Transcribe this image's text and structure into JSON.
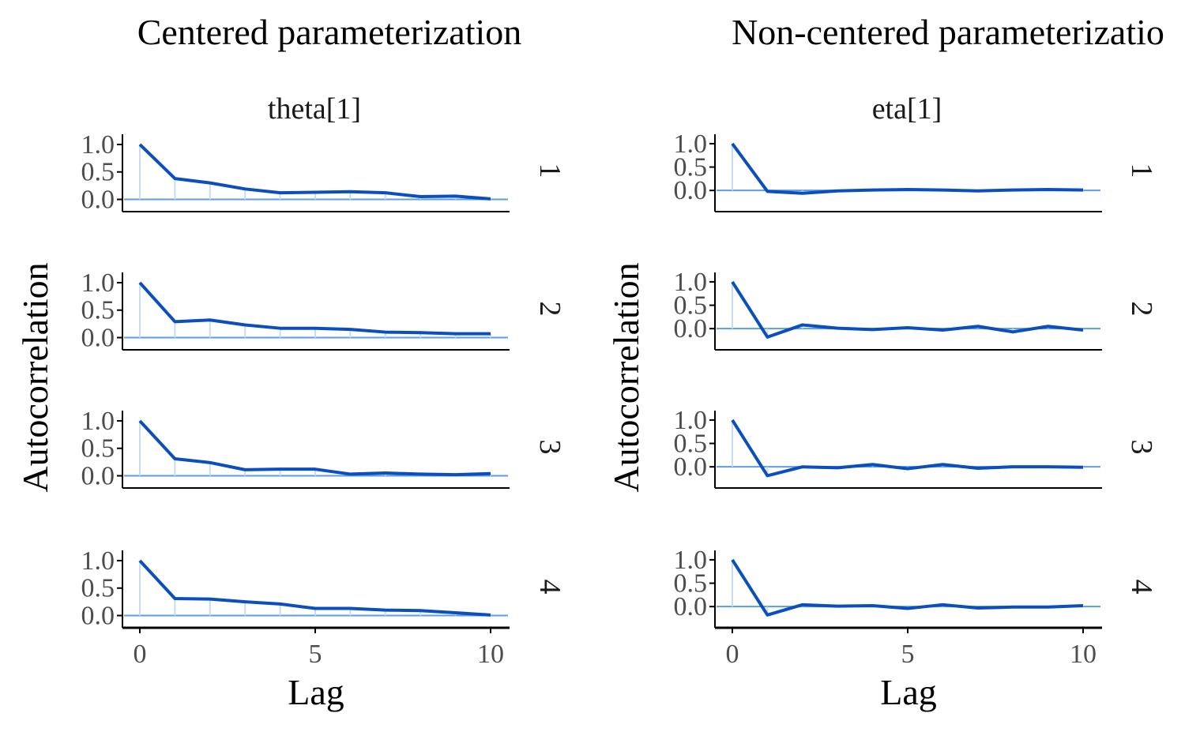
{
  "chart_data": [
    {
      "type": "line",
      "title": "Centered parameterization",
      "facet_title": "theta[1]",
      "xlabel": "Lag",
      "ylabel": "Autocorrelation",
      "x": [
        0,
        1,
        2,
        3,
        4,
        5,
        6,
        7,
        8,
        9,
        10
      ],
      "x_ticks": [
        "0",
        "5",
        "10"
      ],
      "y_ticks": [
        "0.0",
        "0.5",
        "1.0"
      ],
      "xlim": [
        -0.5,
        10.5
      ],
      "ylim": [
        -0.05,
        1.1
      ],
      "series": [
        {
          "name": "1",
          "values": [
            1.0,
            0.38,
            0.3,
            0.19,
            0.12,
            0.13,
            0.14,
            0.12,
            0.05,
            0.06,
            0.01
          ]
        },
        {
          "name": "2",
          "values": [
            1.0,
            0.29,
            0.32,
            0.23,
            0.17,
            0.17,
            0.15,
            0.1,
            0.09,
            0.07,
            0.07
          ]
        },
        {
          "name": "3",
          "values": [
            1.0,
            0.31,
            0.24,
            0.11,
            0.12,
            0.12,
            0.03,
            0.05,
            0.03,
            0.02,
            0.04
          ]
        },
        {
          "name": "4",
          "values": [
            1.0,
            0.31,
            0.3,
            0.25,
            0.21,
            0.13,
            0.13,
            0.1,
            0.09,
            0.05,
            0.01
          ]
        }
      ]
    },
    {
      "type": "line",
      "title": "Non-centered parameterizatio",
      "facet_title": "eta[1]",
      "xlabel": "Lag",
      "ylabel": "Autocorrelation",
      "x": [
        0,
        1,
        2,
        3,
        4,
        5,
        6,
        7,
        8,
        9,
        10
      ],
      "x_ticks": [
        "0",
        "5",
        "10"
      ],
      "y_ticks": [
        "0.0",
        "0.5",
        "1.0"
      ],
      "xlim": [
        -0.5,
        10.5
      ],
      "ylim": [
        -0.25,
        1.1
      ],
      "series": [
        {
          "name": "1",
          "values": [
            1.0,
            -0.02,
            -0.06,
            -0.01,
            0.01,
            0.02,
            0.01,
            -0.01,
            0.01,
            0.02,
            0.01
          ]
        },
        {
          "name": "2",
          "values": [
            1.0,
            -0.18,
            0.08,
            0.01,
            -0.02,
            0.02,
            -0.03,
            0.05,
            -0.07,
            0.05,
            -0.03
          ]
        },
        {
          "name": "3",
          "values": [
            1.0,
            -0.19,
            0.0,
            -0.02,
            0.05,
            -0.04,
            0.05,
            -0.03,
            0.0,
            0.0,
            -0.01
          ]
        },
        {
          "name": "4",
          "values": [
            1.0,
            -0.18,
            0.04,
            0.01,
            0.02,
            -0.04,
            0.04,
            -0.03,
            -0.01,
            -0.01,
            0.02
          ]
        }
      ]
    }
  ],
  "colors": {
    "line": "#0b4fbf",
    "hline": "#5b9de6",
    "stem": "#c6ddf3",
    "axis": "#000000"
  }
}
